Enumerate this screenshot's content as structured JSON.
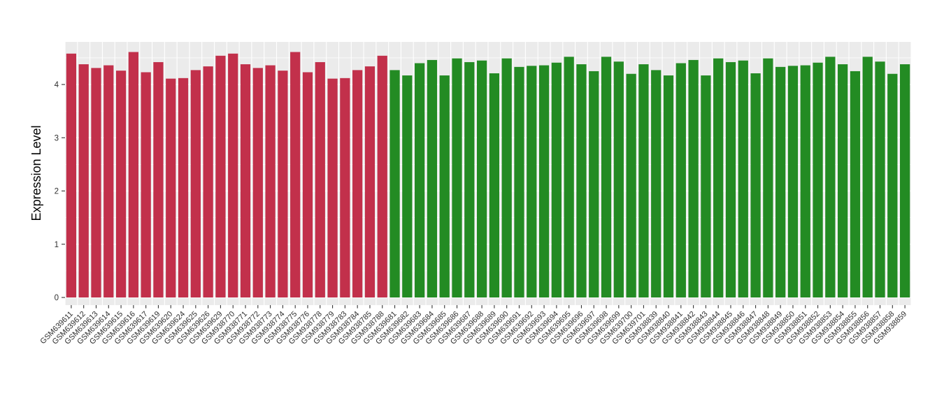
{
  "figure": {
    "background_color": "#FFFFFF",
    "panel_background_color": "#EBEBEB",
    "grid_color": "#FFFFFF",
    "axis_tick_color": "#333333",
    "axis_text_color": "#303030",
    "axis_title_color": "#000000",
    "bar_groups": [
      {
        "color": "#C2304B",
        "count": 26
      },
      {
        "color": "#238B23",
        "count": 42
      }
    ]
  },
  "chart_data": {
    "type": "bar",
    "title": "",
    "xlabel": "",
    "ylabel": "Expression Level",
    "ylim": [
      -0.15,
      4.8
    ],
    "yticks": [
      0,
      1,
      2,
      3,
      4
    ],
    "yminor": [
      0.5,
      1.5,
      2.5,
      3.5,
      4.5
    ],
    "grid": "on",
    "legend_position": "none",
    "x_tick_rotation": -45,
    "categories": [
      "GSM639611",
      "GSM639612",
      "GSM639613",
      "GSM639614",
      "GSM639615",
      "GSM639616",
      "GSM639617",
      "GSM639619",
      "GSM639620",
      "GSM639624",
      "GSM639625",
      "GSM639626",
      "GSM639629",
      "GSM938770",
      "GSM938771",
      "GSM938772",
      "GSM938773",
      "GSM938774",
      "GSM938775",
      "GSM938776",
      "GSM938778",
      "GSM938779",
      "GSM938783",
      "GSM938784",
      "GSM938785",
      "GSM938788",
      "GSM639681",
      "GSM639682",
      "GSM639683",
      "GSM639684",
      "GSM639685",
      "GSM639686",
      "GSM639687",
      "GSM639688",
      "GSM639689",
      "GSM639690",
      "GSM639691",
      "GSM639692",
      "GSM639693",
      "GSM639694",
      "GSM639695",
      "GSM639696",
      "GSM639697",
      "GSM639698",
      "GSM639699",
      "GSM639700",
      "GSM639701",
      "GSM938839",
      "GSM938840",
      "GSM938841",
      "GSM938842",
      "GSM938843",
      "GSM938844",
      "GSM938845",
      "GSM938846",
      "GSM938847",
      "GSM938848",
      "GSM938849",
      "GSM938850",
      "GSM938851",
      "GSM938852",
      "GSM938853",
      "GSM938854",
      "GSM938855",
      "GSM938856",
      "GSM938857",
      "GSM938858",
      "GSM938859"
    ],
    "values": [
      4.58,
      4.38,
      4.31,
      4.36,
      4.26,
      4.61,
      4.23,
      4.42,
      4.11,
      4.12,
      4.27,
      4.34,
      4.54,
      4.58,
      4.38,
      4.31,
      4.36,
      4.26,
      4.61,
      4.23,
      4.42,
      4.11,
      4.12,
      4.27,
      4.34,
      4.54,
      4.27,
      4.17,
      4.4,
      4.46,
      4.17,
      4.49,
      4.42,
      4.45,
      4.21,
      4.49,
      4.33,
      4.35,
      4.36,
      4.41,
      4.52,
      4.38,
      4.25,
      4.52,
      4.43,
      4.2,
      4.38,
      4.27,
      4.17,
      4.4,
      4.46,
      4.17,
      4.49,
      4.42,
      4.45,
      4.21,
      4.49,
      4.33,
      4.35,
      4.36,
      4.41,
      4.52,
      4.38,
      4.25,
      4.52,
      4.43,
      4.2,
      4.38
    ]
  }
}
